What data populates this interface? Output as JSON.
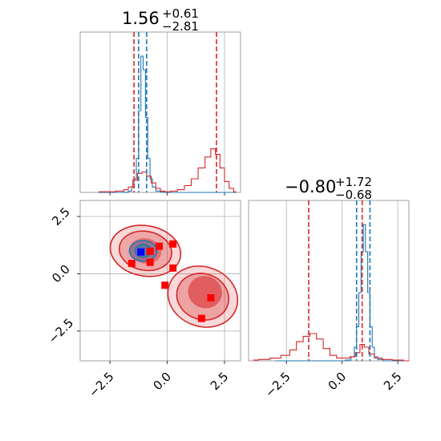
{
  "colors": {
    "blue": "#1f77b4",
    "red": "#d62728",
    "grid": "#b0b0b0",
    "marker_red": "#ff0000",
    "marker_blue": "#0000ff"
  },
  "titles": [
    {
      "main": "1.56",
      "sup": "+0.61",
      "sub": "−2.81"
    },
    {
      "main": "−0.80",
      "sup": "+1.72",
      "sub": "−0.68"
    }
  ],
  "chart_data": [
    {
      "panel": "top-left",
      "type": "histogram",
      "xlim": [
        -3.8,
        3.2
      ],
      "xticks": [
        -2.5,
        0.0,
        2.5
      ],
      "grid": true,
      "series": [
        {
          "color": "blue",
          "x": [
            -3.0,
            -2.5,
            -2.0,
            -1.8,
            -1.6,
            -1.5,
            -1.4,
            -1.3,
            -1.2,
            -1.1,
            -1.0,
            -0.9,
            -0.8,
            -0.7,
            -0.6,
            -0.4,
            -0.2,
            0.0,
            0.5,
            1.0,
            1.5,
            2.0,
            2.5,
            3.0
          ],
          "y": [
            0,
            0,
            0,
            0.2,
            1,
            4,
            10,
            25,
            60,
            100,
            90,
            55,
            25,
            10,
            4,
            1,
            0.3,
            0,
            0,
            0,
            0,
            0,
            0,
            0
          ]
        },
        {
          "color": "red",
          "x": [
            -3.0,
            -2.5,
            -2.0,
            -1.8,
            -1.6,
            -1.4,
            -1.2,
            -1.0,
            -0.8,
            -0.6,
            -0.4,
            -0.2,
            0.0,
            0.3,
            0.6,
            0.9,
            1.2,
            1.5,
            1.8,
            2.0,
            2.2,
            2.4,
            2.6,
            2.8,
            3.0
          ],
          "y": [
            0.5,
            0.5,
            1,
            2,
            4,
            9,
            14,
            15,
            12,
            7,
            3,
            1,
            0.5,
            1,
            2,
            5,
            10,
            18,
            26,
            32,
            28,
            18,
            8,
            3,
            0.5
          ]
        }
      ],
      "vlines": [
        {
          "x": -1.45,
          "color": "red"
        },
        {
          "x": 2.15,
          "color": "red"
        },
        {
          "x": -1.25,
          "color": "blue"
        },
        {
          "x": -0.9,
          "color": "blue"
        }
      ]
    },
    {
      "panel": "bottom-left",
      "type": "contour",
      "xlim": [
        -3.8,
        3.2
      ],
      "ylim": [
        -3.8,
        3.2
      ],
      "xticks": [
        -2.5,
        0.0,
        2.5
      ],
      "yticks": [
        -2.5,
        0.0,
        2.5
      ],
      "grid": true,
      "red_markers": [
        [
          -1.55,
          0.45
        ],
        [
          -0.75,
          0.5
        ],
        [
          -0.35,
          1.2
        ],
        [
          0.25,
          1.3
        ],
        [
          -0.1,
          -0.5
        ],
        [
          0.25,
          0.25
        ],
        [
          1.9,
          -1.05
        ],
        [
          1.5,
          -1.95
        ],
        [
          -0.75,
          0.98
        ]
      ],
      "blue_marker": [
        -1.15,
        0.95
      ]
    },
    {
      "panel": "bottom-right",
      "type": "histogram",
      "xlim": [
        -4.2,
        3.0
      ],
      "xticks": [
        -2.5,
        0.0,
        2.5
      ],
      "grid": true,
      "series": [
        {
          "color": "blue",
          "x": [
            -3.0,
            0.0,
            0.3,
            0.5,
            0.6,
            0.7,
            0.8,
            0.9,
            1.0,
            1.1,
            1.2,
            1.3,
            1.4,
            1.5,
            1.7,
            2.0,
            2.5,
            3.0
          ],
          "y": [
            0,
            0,
            0.5,
            3,
            10,
            25,
            50,
            80,
            100,
            80,
            50,
            25,
            10,
            3,
            1,
            0,
            0,
            0
          ]
        },
        {
          "color": "red",
          "x": [
            -4.0,
            -3.5,
            -3.0,
            -2.5,
            -2.2,
            -1.9,
            -1.6,
            -1.3,
            -1.0,
            -0.7,
            -0.4,
            -0.1,
            0.2,
            0.5,
            0.7,
            0.9,
            1.1,
            1.3,
            1.6,
            2.0,
            2.5,
            3.0
          ],
          "y": [
            0.5,
            1,
            2,
            4,
            8,
            14,
            18,
            20,
            16,
            9,
            4,
            2,
            2,
            3,
            6,
            12,
            10,
            5,
            2,
            1,
            0.5,
            0
          ]
        }
      ],
      "vlines": [
        {
          "x": -1.5,
          "color": "red"
        },
        {
          "x": 0.9,
          "color": "red"
        },
        {
          "x": 0.65,
          "color": "blue"
        },
        {
          "x": 1.25,
          "color": "blue"
        }
      ]
    }
  ]
}
